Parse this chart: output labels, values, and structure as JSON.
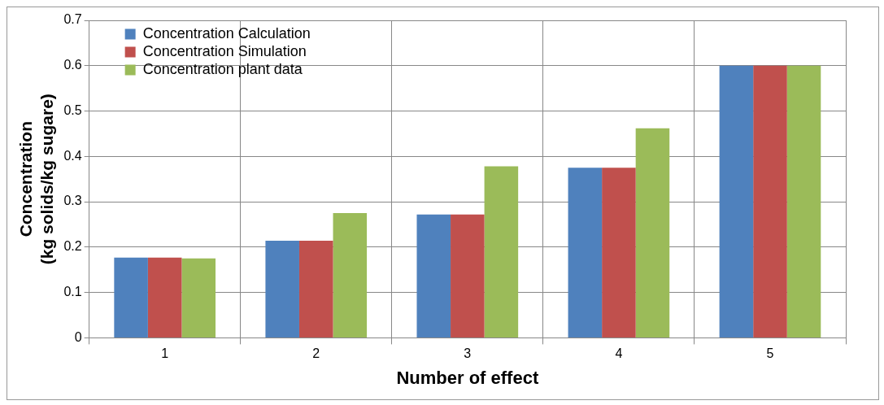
{
  "chart_data": {
    "type": "bar",
    "xlabel": "Number of effect",
    "ylabel": "Concentration\n(kg solids/kg sugare)",
    "categories": [
      "1",
      "2",
      "3",
      "4",
      "5"
    ],
    "series": [
      {
        "name": "Concentration Calculation",
        "color": "#4f81bd",
        "values": [
          0.177,
          0.214,
          0.272,
          0.375,
          0.6
        ]
      },
      {
        "name": "Concentration Simulation",
        "color": "#c0504d",
        "values": [
          0.177,
          0.214,
          0.272,
          0.375,
          0.6
        ]
      },
      {
        "name": "Concentration plant data",
        "color": "#9bbb59",
        "values": [
          0.175,
          0.275,
          0.378,
          0.462,
          0.6
        ]
      }
    ],
    "ylim": [
      0,
      0.7
    ],
    "yticks": [
      0,
      0.1,
      0.2,
      0.3,
      0.4,
      0.5,
      0.6,
      0.7
    ],
    "grid": true,
    "legend": "top left"
  }
}
